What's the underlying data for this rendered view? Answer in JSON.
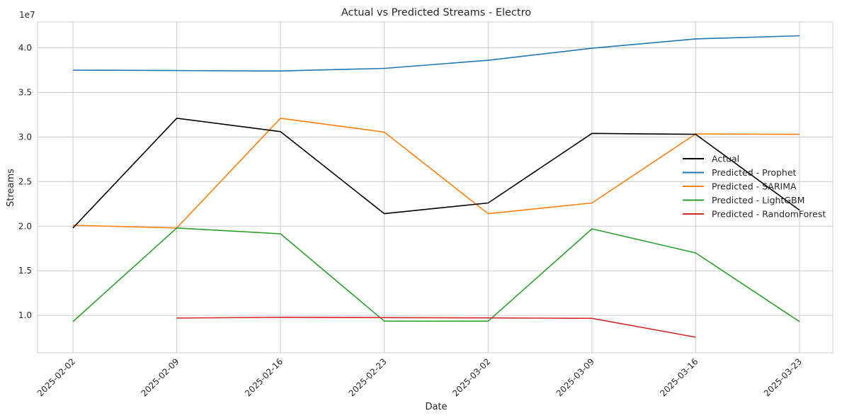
{
  "chart_data": {
    "type": "line",
    "title": "Actual vs Predicted Streams - Electro",
    "xlabel": "Date",
    "ylabel": "Streams",
    "y_multiplier_label": "1e7",
    "categories": [
      "2025-02-02",
      "2025-02-09",
      "2025-02-16",
      "2025-02-23",
      "2025-03-02",
      "2025-03-09",
      "2025-03-16",
      "2025-03-23"
    ],
    "y_ticks": [
      1.0,
      1.5,
      2.0,
      2.5,
      3.0,
      3.5,
      4.0
    ],
    "y_tick_labels": [
      "1.0",
      "1.5",
      "2.0",
      "2.5",
      "3.0",
      "3.5",
      "4.0"
    ],
    "ylim": [
      0.58,
      4.29
    ],
    "grid": true,
    "legend_position": "center-right",
    "series": [
      {
        "name": "Actual",
        "color": "#000000",
        "values": [
          1.98,
          3.21,
          3.06,
          2.14,
          2.26,
          3.04,
          3.03,
          2.18
        ]
      },
      {
        "name": "Predicted - Prophet",
        "color": "#1f77b4",
        "values": [
          3.75,
          3.745,
          3.74,
          3.77,
          3.86,
          3.995,
          4.1,
          4.135
        ]
      },
      {
        "name": "Predicted - SARIMA",
        "color": "#ff7f0e",
        "values": [
          2.01,
          1.98,
          3.21,
          3.055,
          2.14,
          2.26,
          3.035,
          3.03
        ]
      },
      {
        "name": "Predicted - LightGBM",
        "color": "#2ca02c",
        "values": [
          0.93,
          1.98,
          1.915,
          0.935,
          0.935,
          1.97,
          1.7,
          0.93
        ]
      },
      {
        "name": "Predicted - RandomForest",
        "color": "#d62728",
        "values": [
          null,
          0.97,
          0.978,
          0.975,
          0.972,
          0.967,
          0.755,
          null
        ]
      }
    ]
  }
}
